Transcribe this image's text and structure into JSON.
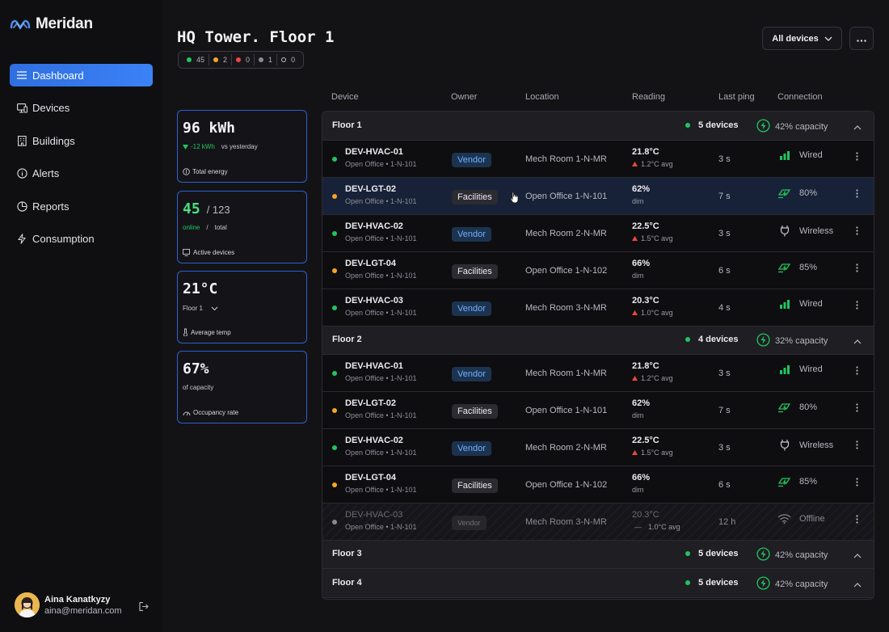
{
  "app": {
    "name": "Meridan"
  },
  "sidebar": {
    "items": [
      {
        "label": "Dashboard",
        "icon": "list-icon"
      },
      {
        "label": "Devices",
        "icon": "monitor-icon"
      },
      {
        "label": "Buildings",
        "icon": "building-icon"
      },
      {
        "label": "Alerts",
        "icon": "info-icon"
      },
      {
        "label": "Reports",
        "icon": "pie-icon"
      },
      {
        "label": "Consumption",
        "icon": "bolt-icon"
      }
    ],
    "active": "Dashboard"
  },
  "user": {
    "name": "Aina Kanatkyzy",
    "email": "aina@meridan.com"
  },
  "header": {
    "title": "HQ Tower. Floor 1",
    "filter_label": "All devices",
    "status_counts": [
      {
        "count": "45",
        "color": "#22c55e"
      },
      {
        "count": "2",
        "color": "#f5a524"
      },
      {
        "count": "0",
        "color": "#ef4444"
      },
      {
        "count": "1",
        "color": "#8a8a94"
      },
      {
        "count": "0",
        "color": "outline"
      }
    ]
  },
  "cards": {
    "energy": {
      "value": "96 kWh",
      "delta": "-12 kWh",
      "delta_suffix": "vs yesterday",
      "label": "Total energy"
    },
    "devices": {
      "online": "45",
      "total": "/ 123",
      "online_label": "online",
      "sep": "/",
      "total_label": "total",
      "label": "Active devices"
    },
    "temp": {
      "value": "21°C",
      "floor": "Floor 1",
      "label": "Average temp"
    },
    "occupancy": {
      "value": "67%",
      "sub": "of capacity",
      "label": "Occupancy rate"
    }
  },
  "table": {
    "headers": [
      "Device",
      "Owner",
      "Location",
      "Reading",
      "Last ping",
      "Connection"
    ],
    "groups": [
      {
        "name": "Floor 1",
        "devices": "5 devices",
        "capacity": "42% capacity"
      },
      {
        "name": "Floor 2",
        "devices": "4 devices",
        "capacity": "32% capacity"
      },
      {
        "name": "Floor 3",
        "devices": "5 devices",
        "capacity": "42% capacity"
      },
      {
        "name": "Floor 4",
        "devices": "5 devices",
        "capacity": "42% capacity"
      }
    ],
    "rows": [
      {
        "name": "DEV-HVAC-01",
        "sub": "Open Office • 1-N-101",
        "owner": "Vendor",
        "location": "Mech Room 1-N-MR",
        "reading": "21.8°C",
        "reading_sub": "1.2°C avg",
        "ping": "3 s",
        "conn": "Wired",
        "status": "#22c55e"
      },
      {
        "name": "DEV-LGT-02",
        "sub": "Open Office • 1-N-101",
        "owner": "Facilities",
        "location": "Open Office 1-N-101",
        "reading": "62%",
        "reading_sub": "dim",
        "ping": "7 s",
        "conn": "80%",
        "status": "#f5a524"
      },
      {
        "name": "DEV-HVAC-02",
        "sub": "Open Office • 1-N-101",
        "owner": "Vendor",
        "location": "Mech Room 2-N-MR",
        "reading": "22.5°C",
        "reading_sub": "1.5°C avg",
        "ping": "3 s",
        "conn": "Wireless",
        "status": "#22c55e"
      },
      {
        "name": "DEV-LGT-04",
        "sub": "Open Office • 1-N-101",
        "owner": "Facilities",
        "location": "Open Office 1-N-102",
        "reading": "66%",
        "reading_sub": "dim",
        "ping": "6 s",
        "conn": "85%",
        "status": "#f5a524"
      },
      {
        "name": "DEV-HVAC-03",
        "sub": "Open Office • 1-N-101",
        "owner": "Vendor",
        "location": "Mech Room 3-N-MR",
        "reading": "20.3°C",
        "reading_sub": "1.0°C avg",
        "ping": "4 s",
        "conn": "Wired",
        "status": "#22c55e"
      },
      {
        "name": "DEV-HVAC-01",
        "sub": "Open Office • 1-N-101",
        "owner": "Vendor",
        "location": "Mech Room 1-N-MR",
        "reading": "21.8°C",
        "reading_sub": "1.2°C avg",
        "ping": "3 s",
        "conn": "Wired",
        "status": "#22c55e"
      },
      {
        "name": "DEV-LGT-02",
        "sub": "Open Office • 1-N-101",
        "owner": "Facilities",
        "location": "Open Office 1-N-101",
        "reading": "62%",
        "reading_sub": "dim",
        "ping": "7 s",
        "conn": "80%",
        "status": "#f5a524"
      },
      {
        "name": "DEV-HVAC-02",
        "sub": "Open Office • 1-N-101",
        "owner": "Vendor",
        "location": "Mech Room 2-N-MR",
        "reading": "22.5°C",
        "reading_sub": "1.5°C avg",
        "ping": "3 s",
        "conn": "Wireless",
        "status": "#22c55e"
      },
      {
        "name": "DEV-LGT-04",
        "sub": "Open Office • 1-N-101",
        "owner": "Facilities",
        "location": "Open Office 1-N-102",
        "reading": "66%",
        "reading_sub": "dim",
        "ping": "6 s",
        "conn": "85%",
        "status": "#f5a524"
      },
      {
        "name": "DEV-HVAC-03",
        "sub": "Open Office • 1-N-101",
        "owner": "Vendor",
        "location": "Mech Room 3-N-MR",
        "reading": "20.3°C",
        "reading_sub": "1.0°C avg",
        "ping": "12 h",
        "conn": "Offline",
        "status": "#8a8a94"
      }
    ]
  },
  "colors": {
    "accent": "#3b82f6",
    "online": "#22c55e",
    "warning": "#f5a524",
    "alert": "#ef4444"
  }
}
